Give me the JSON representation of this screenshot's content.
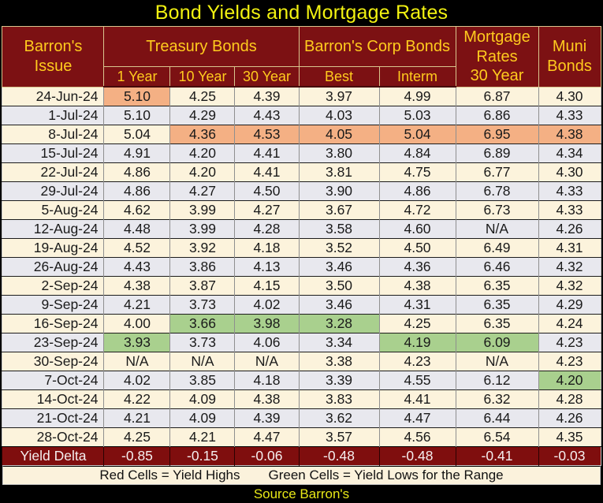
{
  "title": "Bond Yields and Mortgage Rates",
  "source": "Source Barron's",
  "legend": {
    "red": "Red Cells = Yield Highs",
    "green": "Green Cells = Yield Lows for the Range"
  },
  "header": {
    "issue": "Barron's\nIssue",
    "treasury_group": "Treasury Bonds",
    "corp_group": "Barron's Corp Bonds",
    "mortgage": "Mortgage\nRates\n30 Year",
    "muni": "Muni\nBonds",
    "sub": [
      "1 Year",
      "10 Year",
      "30 Year",
      "Best",
      "Interm"
    ]
  },
  "colors": {
    "title-yellow": "#F2F211",
    "header-bg": "#7C1113",
    "header-text": "#FFCB1E",
    "row-cream": "#FCF3DC",
    "row-gray": "#E8E8EE",
    "hl-red": "#F4B084",
    "hl-green": "#A9D08E",
    "delta-bg": "#7F0E0E",
    "legend-bg": "#FBF2DC",
    "source-text": "#E8E817"
  },
  "chart_data": {
    "type": "table",
    "title": "Bond Yields and Mortgage Rates",
    "columns": [
      "Barron's Issue",
      "Treasury Bonds 1 Year",
      "Treasury Bonds 10 Year",
      "Treasury Bonds 30 Year",
      "Barron's Corp Bonds Best",
      "Barron's Corp Bonds Interm",
      "Mortgage Rates 30 Year",
      "Muni Bonds"
    ],
    "highlight_meaning": {
      "red": "Yield Highs",
      "green": "Yield Lows for the Range"
    },
    "rows": [
      {
        "date": "24-Jun-24",
        "values": [
          "5.10",
          "4.25",
          "4.39",
          "3.97",
          "4.99",
          "6.87",
          "4.30"
        ],
        "hl": [
          "red",
          "",
          "",
          "",
          "",
          "",
          ""
        ]
      },
      {
        "date": "1-Jul-24",
        "values": [
          "5.10",
          "4.29",
          "4.43",
          "4.03",
          "5.03",
          "6.86",
          "4.33"
        ],
        "hl": [
          "",
          "",
          "",
          "",
          "",
          "",
          ""
        ]
      },
      {
        "date": "8-Jul-24",
        "values": [
          "5.04",
          "4.36",
          "4.53",
          "4.05",
          "5.04",
          "6.95",
          "4.38"
        ],
        "hl": [
          "",
          "red",
          "red",
          "red",
          "red",
          "red",
          "red"
        ]
      },
      {
        "date": "15-Jul-24",
        "values": [
          "4.91",
          "4.20",
          "4.41",
          "3.80",
          "4.84",
          "6.89",
          "4.34"
        ],
        "hl": [
          "",
          "",
          "",
          "",
          "",
          "",
          ""
        ]
      },
      {
        "date": "22-Jul-24",
        "values": [
          "4.86",
          "4.20",
          "4.41",
          "3.81",
          "4.75",
          "6.77",
          "4.30"
        ],
        "hl": [
          "",
          "",
          "",
          "",
          "",
          "",
          ""
        ]
      },
      {
        "date": "29-Jul-24",
        "values": [
          "4.86",
          "4.27",
          "4.50",
          "3.90",
          "4.86",
          "6.78",
          "4.33"
        ],
        "hl": [
          "",
          "",
          "",
          "",
          "",
          "",
          ""
        ]
      },
      {
        "date": "5-Aug-24",
        "values": [
          "4.62",
          "3.99",
          "4.27",
          "3.67",
          "4.72",
          "6.73",
          "4.33"
        ],
        "hl": [
          "",
          "",
          "",
          "",
          "",
          "",
          ""
        ]
      },
      {
        "date": "12-Aug-24",
        "values": [
          "4.48",
          "3.99",
          "4.28",
          "3.58",
          "4.60",
          "N/A",
          "4.26"
        ],
        "hl": [
          "",
          "",
          "",
          "",
          "",
          "",
          ""
        ]
      },
      {
        "date": "19-Aug-24",
        "values": [
          "4.52",
          "3.92",
          "4.18",
          "3.52",
          "4.50",
          "6.49",
          "4.31"
        ],
        "hl": [
          "",
          "",
          "",
          "",
          "",
          "",
          ""
        ]
      },
      {
        "date": "26-Aug-24",
        "values": [
          "4.43",
          "3.86",
          "4.13",
          "3.46",
          "4.36",
          "6.46",
          "4.32"
        ],
        "hl": [
          "",
          "",
          "",
          "",
          "",
          "",
          ""
        ]
      },
      {
        "date": "2-Sep-24",
        "values": [
          "4.38",
          "3.87",
          "4.15",
          "3.50",
          "4.38",
          "6.35",
          "4.32"
        ],
        "hl": [
          "",
          "",
          "",
          "",
          "",
          "",
          ""
        ]
      },
      {
        "date": "9-Sep-24",
        "values": [
          "4.21",
          "3.73",
          "4.02",
          "3.46",
          "4.31",
          "6.35",
          "4.29"
        ],
        "hl": [
          "",
          "",
          "",
          "",
          "",
          "",
          ""
        ]
      },
      {
        "date": "16-Sep-24",
        "values": [
          "4.00",
          "3.66",
          "3.98",
          "3.28",
          "4.25",
          "6.35",
          "4.24"
        ],
        "hl": [
          "",
          "green",
          "green",
          "green",
          "",
          "",
          ""
        ]
      },
      {
        "date": "23-Sep-24",
        "values": [
          "3.93",
          "3.73",
          "4.06",
          "3.34",
          "4.19",
          "6.09",
          "4.23"
        ],
        "hl": [
          "green",
          "",
          "",
          "",
          "green",
          "green",
          ""
        ]
      },
      {
        "date": "30-Sep-24",
        "values": [
          "N/A",
          "N/A",
          "N/A",
          "3.38",
          "4.23",
          "N/A",
          "4.23"
        ],
        "hl": [
          "",
          "",
          "",
          "",
          "",
          "",
          ""
        ]
      },
      {
        "date": "7-Oct-24",
        "values": [
          "4.02",
          "3.85",
          "4.18",
          "3.39",
          "4.55",
          "6.12",
          "4.20"
        ],
        "hl": [
          "",
          "",
          "",
          "",
          "",
          "",
          "green"
        ]
      },
      {
        "date": "14-Oct-24",
        "values": [
          "4.22",
          "4.09",
          "4.38",
          "3.83",
          "4.41",
          "6.32",
          "4.28"
        ],
        "hl": [
          "",
          "",
          "",
          "",
          "",
          "",
          ""
        ]
      },
      {
        "date": "21-Oct-24",
        "values": [
          "4.21",
          "4.09",
          "4.39",
          "3.62",
          "4.47",
          "6.44",
          "4.26"
        ],
        "hl": [
          "",
          "",
          "",
          "",
          "",
          "",
          ""
        ]
      },
      {
        "date": "28-Oct-24",
        "values": [
          "4.25",
          "4.21",
          "4.47",
          "3.57",
          "4.56",
          "6.54",
          "4.35"
        ],
        "hl": [
          "",
          "",
          "",
          "",
          "",
          "",
          ""
        ]
      }
    ],
    "yield_delta": {
      "label": "Yield Delta",
      "values": [
        "-0.85",
        "-0.15",
        "-0.06",
        "-0.48",
        "-0.48",
        "-0.41",
        "-0.03"
      ]
    }
  }
}
